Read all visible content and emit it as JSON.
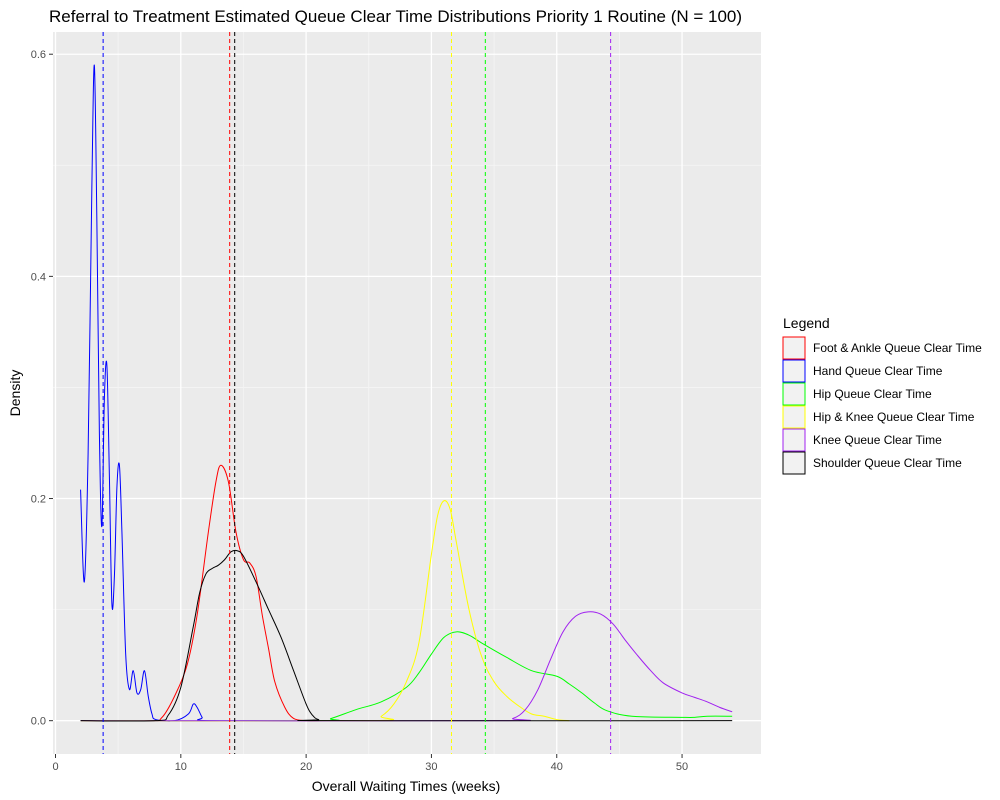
{
  "chart_data": {
    "type": "line",
    "title": "Referral to Treatment Estimated Queue Clear Time Distributions Priority 1 Routine (N = 100)",
    "xlabel": "Overall Waiting Times (weeks)",
    "ylabel": "Density",
    "xlim": [
      -0.2,
      56.3
    ],
    "ylim": [
      -0.03,
      0.62
    ],
    "x_ticks": [
      0,
      10,
      20,
      30,
      40,
      50
    ],
    "y_ticks": [
      0.0,
      0.2,
      0.4,
      0.6
    ],
    "x_tick_labels": [
      "0",
      "10",
      "20",
      "30",
      "40",
      "50"
    ],
    "y_tick_labels": [
      "0.0",
      "0.2",
      "0.4",
      "0.6"
    ],
    "grid": true,
    "legend": {
      "title": "Legend",
      "position": "right"
    },
    "series": [
      {
        "name": "Foot & Ankle Queue Clear Time",
        "color": "#ff0000",
        "mean": 13.9,
        "points": [
          [
            2,
            0
          ],
          [
            7.5,
            0
          ],
          [
            8.5,
            0.003
          ],
          [
            9.5,
            0.022
          ],
          [
            10.5,
            0.05
          ],
          [
            11.3,
            0.095
          ],
          [
            12.2,
            0.17
          ],
          [
            12.8,
            0.215
          ],
          [
            13.2,
            0.23
          ],
          [
            13.8,
            0.215
          ],
          [
            14.4,
            0.17
          ],
          [
            15,
            0.145
          ],
          [
            15.5,
            0.142
          ],
          [
            16,
            0.13
          ],
          [
            16.5,
            0.095
          ],
          [
            17,
            0.065
          ],
          [
            17.5,
            0.035
          ],
          [
            18.3,
            0.012
          ],
          [
            19,
            0.002
          ],
          [
            20,
            0
          ],
          [
            21,
            0
          ]
        ]
      },
      {
        "name": "Hand Queue Clear Time",
        "color": "#0000ff",
        "mean": 3.8,
        "points": [
          [
            2,
            0.208
          ],
          [
            2.3,
            0.125
          ],
          [
            2.6,
            0.24
          ],
          [
            2.9,
            0.48
          ],
          [
            3.1,
            0.59
          ],
          [
            3.3,
            0.45
          ],
          [
            3.5,
            0.26
          ],
          [
            3.7,
            0.175
          ],
          [
            3.9,
            0.29
          ],
          [
            4.1,
            0.32
          ],
          [
            4.3,
            0.22
          ],
          [
            4.5,
            0.105
          ],
          [
            4.7,
            0.13
          ],
          [
            4.9,
            0.21
          ],
          [
            5.1,
            0.23
          ],
          [
            5.3,
            0.17
          ],
          [
            5.6,
            0.06
          ],
          [
            5.9,
            0.028
          ],
          [
            6.2,
            0.045
          ],
          [
            6.5,
            0.025
          ],
          [
            6.8,
            0.028
          ],
          [
            7.1,
            0.045
          ],
          [
            7.4,
            0.022
          ],
          [
            7.7,
            0.006
          ],
          [
            8,
            0.001
          ],
          [
            9.5,
            0
          ],
          [
            10.6,
            0.006
          ],
          [
            11,
            0.015
          ],
          [
            11.3,
            0.012
          ],
          [
            11.7,
            0.003
          ],
          [
            12,
            0
          ],
          [
            20,
            0
          ]
        ]
      },
      {
        "name": "Hip Queue Clear Time",
        "color": "#00ff00",
        "mean": 34.3,
        "points": [
          [
            2,
            0
          ],
          [
            21,
            0
          ],
          [
            22,
            0.002
          ],
          [
            24,
            0.01
          ],
          [
            26,
            0.017
          ],
          [
            28,
            0.03
          ],
          [
            29,
            0.043
          ],
          [
            30,
            0.06
          ],
          [
            31,
            0.075
          ],
          [
            32,
            0.08
          ],
          [
            33,
            0.077
          ],
          [
            34,
            0.07
          ],
          [
            36,
            0.057
          ],
          [
            38,
            0.045
          ],
          [
            40,
            0.04
          ],
          [
            41,
            0.033
          ],
          [
            42,
            0.025
          ],
          [
            43,
            0.016
          ],
          [
            44,
            0.009
          ],
          [
            46,
            0.004
          ],
          [
            50,
            0.003
          ],
          [
            51,
            0.003
          ],
          [
            52,
            0.004
          ],
          [
            54,
            0.004
          ]
        ]
      },
      {
        "name": "Hip & Knee Queue Clear Time",
        "color": "#ffff00",
        "mean": 31.6,
        "points": [
          [
            2,
            0
          ],
          [
            25,
            0
          ],
          [
            26,
            0.004
          ],
          [
            27,
            0.015
          ],
          [
            28,
            0.035
          ],
          [
            29,
            0.07
          ],
          [
            30,
            0.15
          ],
          [
            30.5,
            0.185
          ],
          [
            31,
            0.198
          ],
          [
            31.5,
            0.19
          ],
          [
            32,
            0.16
          ],
          [
            33,
            0.1
          ],
          [
            34,
            0.058
          ],
          [
            35,
            0.035
          ],
          [
            36,
            0.022
          ],
          [
            37,
            0.013
          ],
          [
            38,
            0.006
          ],
          [
            39,
            0.004
          ],
          [
            40,
            0.001
          ],
          [
            41,
            0
          ]
        ]
      },
      {
        "name": "Knee Queue Clear Time",
        "color": "#a020f0",
        "mean": 44.3,
        "points": [
          [
            2,
            0
          ],
          [
            35,
            0
          ],
          [
            36.5,
            0.002
          ],
          [
            37.5,
            0.01
          ],
          [
            38.5,
            0.028
          ],
          [
            39.5,
            0.055
          ],
          [
            40.5,
            0.08
          ],
          [
            41.5,
            0.094
          ],
          [
            42.5,
            0.098
          ],
          [
            43.5,
            0.096
          ],
          [
            44.5,
            0.087
          ],
          [
            45.5,
            0.072
          ],
          [
            46.5,
            0.058
          ],
          [
            47.5,
            0.045
          ],
          [
            48.5,
            0.034
          ],
          [
            50,
            0.025
          ],
          [
            51,
            0.021
          ],
          [
            52,
            0.017
          ],
          [
            53,
            0.012
          ],
          [
            54,
            0.008
          ]
        ]
      },
      {
        "name": "Shoulder Queue Clear Time",
        "color": "#000000",
        "mean": 14.3,
        "points": [
          [
            2,
            0
          ],
          [
            8,
            0
          ],
          [
            9,
            0.005
          ],
          [
            10,
            0.03
          ],
          [
            11,
            0.085
          ],
          [
            11.5,
            0.115
          ],
          [
            12,
            0.132
          ],
          [
            12.5,
            0.137
          ],
          [
            13,
            0.14
          ],
          [
            13.5,
            0.145
          ],
          [
            14,
            0.152
          ],
          [
            14.5,
            0.153
          ],
          [
            15,
            0.148
          ],
          [
            16,
            0.125
          ],
          [
            17,
            0.1
          ],
          [
            18,
            0.075
          ],
          [
            19,
            0.045
          ],
          [
            20,
            0.015
          ],
          [
            20.5,
            0.005
          ],
          [
            21,
            0.001
          ],
          [
            22,
            0
          ],
          [
            54,
            0
          ]
        ]
      }
    ]
  }
}
